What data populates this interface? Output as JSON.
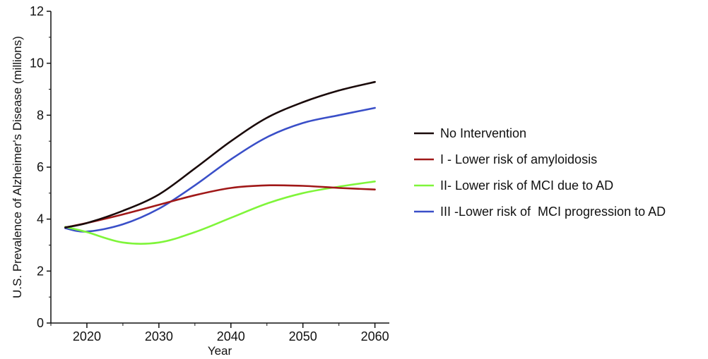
{
  "chart_data": {
    "type": "line",
    "title": "",
    "xlabel": "Year",
    "ylabel": "U.S. Prevalence of Alzheimer's Disease (millions)",
    "xlim": [
      2015,
      2062
    ],
    "ylim": [
      0,
      12
    ],
    "x_ticks": [
      2020,
      2030,
      2040,
      2050,
      2060
    ],
    "y_ticks": [
      0,
      2,
      4,
      6,
      8,
      10,
      12
    ],
    "grid": false,
    "legend_position": "right",
    "x": [
      2017,
      2020,
      2025,
      2030,
      2035,
      2040,
      2045,
      2050,
      2055,
      2060
    ],
    "series": [
      {
        "name": "No Intervention",
        "color": "#1a0a0a",
        "values": [
          3.68,
          3.85,
          4.32,
          4.95,
          5.95,
          7.0,
          7.9,
          8.5,
          8.95,
          9.28
        ]
      },
      {
        "name": "I - Lower risk of amyloidosis",
        "color": "#a01818",
        "values": [
          3.68,
          3.85,
          4.18,
          4.55,
          4.92,
          5.2,
          5.3,
          5.28,
          5.2,
          5.14
        ]
      },
      {
        "name": "II- Lower risk of MCI due to AD",
        "color": "#7ff53a",
        "values": [
          3.7,
          3.5,
          3.1,
          3.1,
          3.5,
          4.05,
          4.6,
          5.0,
          5.25,
          5.45
        ]
      },
      {
        "name": "III -Lower risk of  MCI progression to AD",
        "color": "#3a4fc8",
        "values": [
          3.65,
          3.52,
          3.8,
          4.4,
          5.3,
          6.3,
          7.15,
          7.7,
          8.0,
          8.28
        ]
      }
    ]
  }
}
